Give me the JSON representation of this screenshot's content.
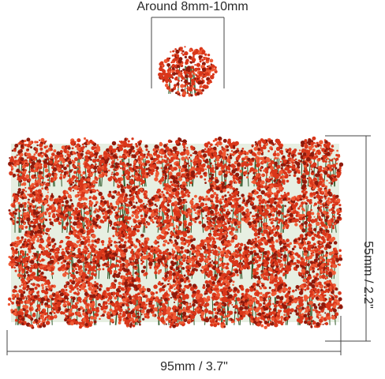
{
  "dimensions": {
    "single_tuft": "Around 8mm-10mm",
    "width": "95mm / 3.7\"",
    "height": "55mm / 2.2\""
  },
  "colors": {
    "flower_red": "#d9361a",
    "flower_dark": "#8f1a0c",
    "flower_light": "#ef5a35",
    "stem_green": "#2f5a2a",
    "line": "#444444"
  }
}
